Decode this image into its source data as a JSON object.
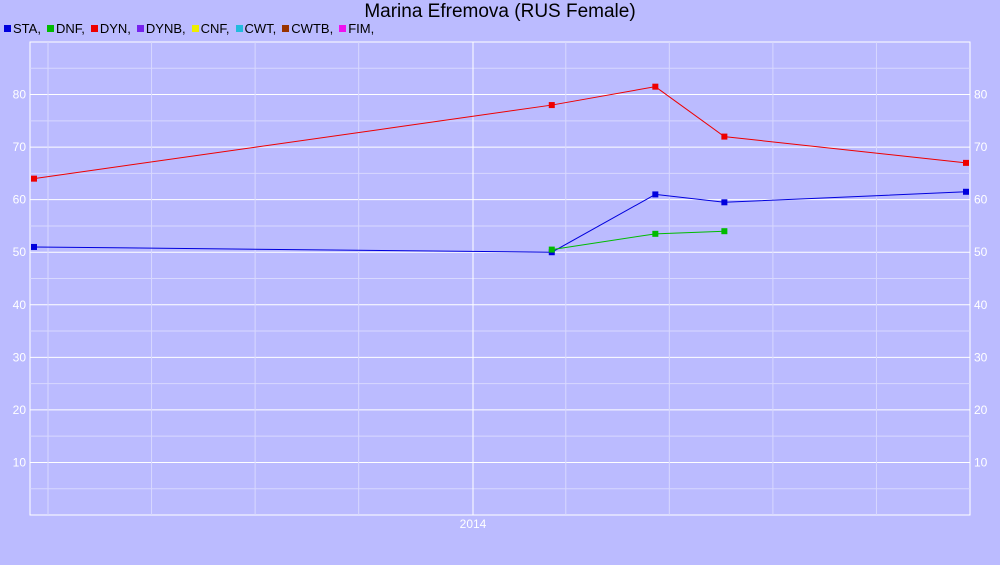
{
  "chart_data": {
    "type": "line",
    "title": "Marina Efremova (RUS Female)",
    "xlabel": "",
    "ylabel": "",
    "x_tick_labels": [
      "2014"
    ],
    "ylim": [
      0,
      90
    ],
    "y_ticks": [
      10,
      20,
      30,
      40,
      50,
      60,
      70,
      80
    ],
    "grid": true,
    "legend_position": "top-left",
    "legend": [
      {
        "label": "STA,",
        "color": "#0000dd"
      },
      {
        "label": "DNF,",
        "color": "#00bb00"
      },
      {
        "label": "DYN,",
        "color": "#ee0000"
      },
      {
        "label": "DYNB,",
        "color": "#7722ee"
      },
      {
        "label": "CNF,",
        "color": "#eeee00"
      },
      {
        "label": "CWT,",
        "color": "#22bbdd"
      },
      {
        "label": "CWTB,",
        "color": "#993300"
      },
      {
        "label": "FIM,",
        "color": "#ee11ee"
      }
    ],
    "series": [
      {
        "name": "STA",
        "color": "#0000dd",
        "x": [
          "2013-01",
          "2014-04",
          "2014-07",
          "2014-09",
          "2015-04"
        ],
        "y": [
          51,
          50,
          61,
          59.5,
          61.5
        ]
      },
      {
        "name": "DNF",
        "color": "#00bb00",
        "x": [
          "2014-04",
          "2014-07",
          "2014-09"
        ],
        "y": [
          50.5,
          53.5,
          54
        ]
      },
      {
        "name": "DYN",
        "color": "#ee0000",
        "x": [
          "2013-01",
          "2014-04",
          "2014-07",
          "2014-09",
          "2015-04"
        ],
        "y": [
          64,
          78,
          81.5,
          72,
          67
        ]
      }
    ]
  }
}
